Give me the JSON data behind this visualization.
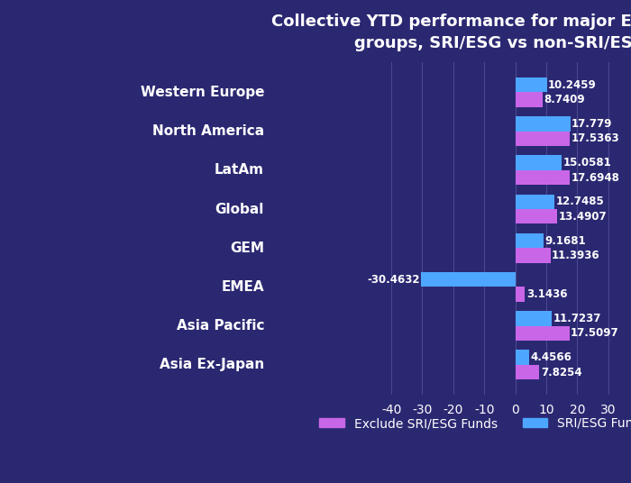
{
  "title": "Collective YTD performance for major Equity Fund\ngroups, SRI/ESG vs non-SRI/ESG",
  "categories": [
    "Western Europe",
    "North America",
    "LatAm",
    "Global",
    "GEM",
    "EMEA",
    "Asia Pacific",
    "Asia Ex-Japan"
  ],
  "exclude_sri": [
    8.7409,
    17.5363,
    17.6948,
    13.4907,
    11.3936,
    3.1436,
    17.5097,
    7.8254
  ],
  "sri_only": [
    10.2459,
    17.779,
    15.0581,
    12.7485,
    9.1681,
    -30.4632,
    11.7237,
    4.4566
  ],
  "exclude_sri_color": "#c966e8",
  "sri_only_color": "#4da6ff",
  "background_color": "#2b2872",
  "text_color": "#ffffff",
  "grid_color": "#4a4890",
  "xlim": [
    -43,
    33
  ],
  "xticks": [
    -40,
    -30,
    -20,
    -10,
    0,
    10,
    20,
    30
  ],
  "bar_height": 0.38,
  "label_fontsize": 8.5,
  "title_fontsize": 13,
  "tick_fontsize": 10,
  "legend_fontsize": 10,
  "category_fontsize": 11
}
